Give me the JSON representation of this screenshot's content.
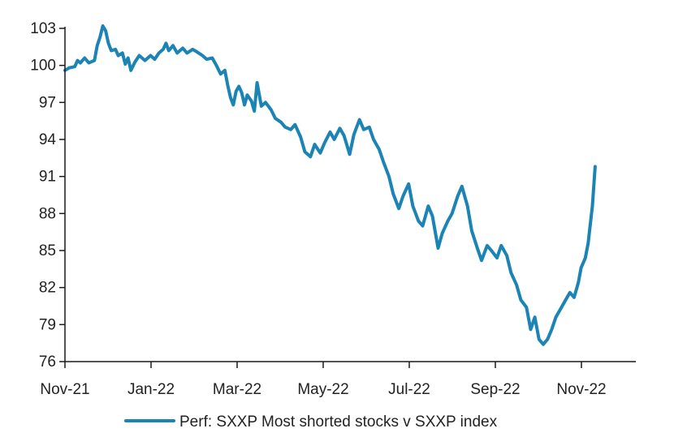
{
  "chart_data": {
    "type": "line",
    "title": "",
    "xlabel": "",
    "ylabel": "",
    "x_tick_labels": [
      "Nov-21",
      "Jan-22",
      "Mar-22",
      "May-22",
      "Jul-22",
      "Sep-22",
      "Nov-22"
    ],
    "x_range": [
      "2021-11-01",
      "2022-12-13"
    ],
    "y_ticks": [
      76,
      79,
      82,
      85,
      88,
      91,
      94,
      97,
      100,
      103
    ],
    "ylim": [
      76,
      103
    ],
    "grid": false,
    "legend": "bottom",
    "series": [
      {
        "name": "Perf: SXXP Most shorted stocks v SXXP index",
        "color": "#1B84B4",
        "points": [
          [
            "2021-11-01",
            99.6
          ],
          [
            "2021-11-04",
            99.8
          ],
          [
            "2021-11-08",
            99.9
          ],
          [
            "2021-11-10",
            100.4
          ],
          [
            "2021-11-12",
            100.2
          ],
          [
            "2021-11-15",
            100.6
          ],
          [
            "2021-11-18",
            100.2
          ],
          [
            "2021-11-22",
            100.4
          ],
          [
            "2021-11-24",
            101.6
          ],
          [
            "2021-11-26",
            102.3
          ],
          [
            "2021-11-28",
            103.2
          ],
          [
            "2021-11-30",
            102.8
          ],
          [
            "2021-12-02",
            101.8
          ],
          [
            "2021-12-04",
            101.2
          ],
          [
            "2021-12-07",
            101.3
          ],
          [
            "2021-12-09",
            100.8
          ],
          [
            "2021-12-12",
            101.0
          ],
          [
            "2021-12-14",
            100.1
          ],
          [
            "2021-12-16",
            100.6
          ],
          [
            "2021-12-18",
            99.6
          ],
          [
            "2021-12-21",
            100.3
          ],
          [
            "2021-12-24",
            100.8
          ],
          [
            "2021-12-28",
            100.4
          ],
          [
            "2022-01-01",
            100.8
          ],
          [
            "2022-01-04",
            100.5
          ],
          [
            "2022-01-07",
            101.0
          ],
          [
            "2022-01-10",
            101.3
          ],
          [
            "2022-01-12",
            101.8
          ],
          [
            "2022-01-14",
            101.2
          ],
          [
            "2022-01-17",
            101.6
          ],
          [
            "2022-01-20",
            101.0
          ],
          [
            "2022-01-24",
            101.4
          ],
          [
            "2022-01-27",
            101.0
          ],
          [
            "2022-01-31",
            101.3
          ],
          [
            "2022-02-03",
            101.1
          ],
          [
            "2022-02-07",
            100.8
          ],
          [
            "2022-02-10",
            100.5
          ],
          [
            "2022-02-14",
            100.6
          ],
          [
            "2022-02-17",
            100.0
          ],
          [
            "2022-02-20",
            99.3
          ],
          [
            "2022-02-23",
            99.6
          ],
          [
            "2022-02-25",
            98.4
          ],
          [
            "2022-02-27",
            97.4
          ],
          [
            "2022-03-01",
            96.8
          ],
          [
            "2022-03-03",
            97.9
          ],
          [
            "2022-03-05",
            98.3
          ],
          [
            "2022-03-07",
            97.8
          ],
          [
            "2022-03-09",
            96.8
          ],
          [
            "2022-03-11",
            97.6
          ],
          [
            "2022-03-14",
            97.1
          ],
          [
            "2022-03-16",
            96.3
          ],
          [
            "2022-03-18",
            98.6
          ],
          [
            "2022-03-21",
            96.7
          ],
          [
            "2022-03-24",
            97.0
          ],
          [
            "2022-03-28",
            96.4
          ],
          [
            "2022-03-31",
            95.7
          ],
          [
            "2022-04-04",
            95.4
          ],
          [
            "2022-04-07",
            95.0
          ],
          [
            "2022-04-11",
            94.8
          ],
          [
            "2022-04-14",
            95.2
          ],
          [
            "2022-04-18",
            94.2
          ],
          [
            "2022-04-21",
            93.0
          ],
          [
            "2022-04-25",
            92.6
          ],
          [
            "2022-04-28",
            93.6
          ],
          [
            "2022-05-02",
            92.9
          ],
          [
            "2022-05-05",
            93.7
          ],
          [
            "2022-05-09",
            94.6
          ],
          [
            "2022-05-12",
            94.0
          ],
          [
            "2022-05-16",
            94.9
          ],
          [
            "2022-05-19",
            94.3
          ],
          [
            "2022-05-23",
            92.8
          ],
          [
            "2022-05-26",
            94.4
          ],
          [
            "2022-05-30",
            95.6
          ],
          [
            "2022-06-02",
            94.8
          ],
          [
            "2022-06-06",
            95.0
          ],
          [
            "2022-06-09",
            94.0
          ],
          [
            "2022-06-13",
            93.2
          ],
          [
            "2022-06-16",
            92.2
          ],
          [
            "2022-06-20",
            91.0
          ],
          [
            "2022-06-23",
            89.6
          ],
          [
            "2022-06-27",
            88.4
          ],
          [
            "2022-06-30",
            89.4
          ],
          [
            "2022-07-04",
            90.4
          ],
          [
            "2022-07-07",
            88.6
          ],
          [
            "2022-07-11",
            87.4
          ],
          [
            "2022-07-14",
            87.0
          ],
          [
            "2022-07-18",
            88.6
          ],
          [
            "2022-07-21",
            87.8
          ],
          [
            "2022-07-25",
            85.2
          ],
          [
            "2022-07-28",
            86.4
          ],
          [
            "2022-08-01",
            87.4
          ],
          [
            "2022-08-04",
            88.0
          ],
          [
            "2022-08-08",
            89.4
          ],
          [
            "2022-08-11",
            90.2
          ],
          [
            "2022-08-15",
            88.6
          ],
          [
            "2022-08-18",
            86.6
          ],
          [
            "2022-08-22",
            85.2
          ],
          [
            "2022-08-25",
            84.2
          ],
          [
            "2022-08-29",
            85.4
          ],
          [
            "2022-09-01",
            85.0
          ],
          [
            "2022-09-05",
            84.4
          ],
          [
            "2022-09-08",
            85.4
          ],
          [
            "2022-09-12",
            84.6
          ],
          [
            "2022-09-15",
            83.2
          ],
          [
            "2022-09-19",
            82.2
          ],
          [
            "2022-09-22",
            81.0
          ],
          [
            "2022-09-26",
            80.4
          ],
          [
            "2022-09-29",
            78.6
          ],
          [
            "2022-10-02",
            79.6
          ],
          [
            "2022-10-05",
            77.8
          ],
          [
            "2022-10-08",
            77.4
          ],
          [
            "2022-10-11",
            77.8
          ],
          [
            "2022-10-14",
            78.6
          ],
          [
            "2022-10-17",
            79.6
          ],
          [
            "2022-10-20",
            80.2
          ],
          [
            "2022-10-24",
            81.0
          ],
          [
            "2022-10-27",
            81.6
          ],
          [
            "2022-10-30",
            81.2
          ],
          [
            "2022-11-02",
            82.4
          ],
          [
            "2022-11-04",
            83.6
          ],
          [
            "2022-11-07",
            84.4
          ],
          [
            "2022-11-09",
            85.6
          ],
          [
            "2022-11-10",
            86.6
          ],
          [
            "2022-11-12",
            88.6
          ],
          [
            "2022-11-14",
            91.8
          ]
        ]
      }
    ]
  }
}
